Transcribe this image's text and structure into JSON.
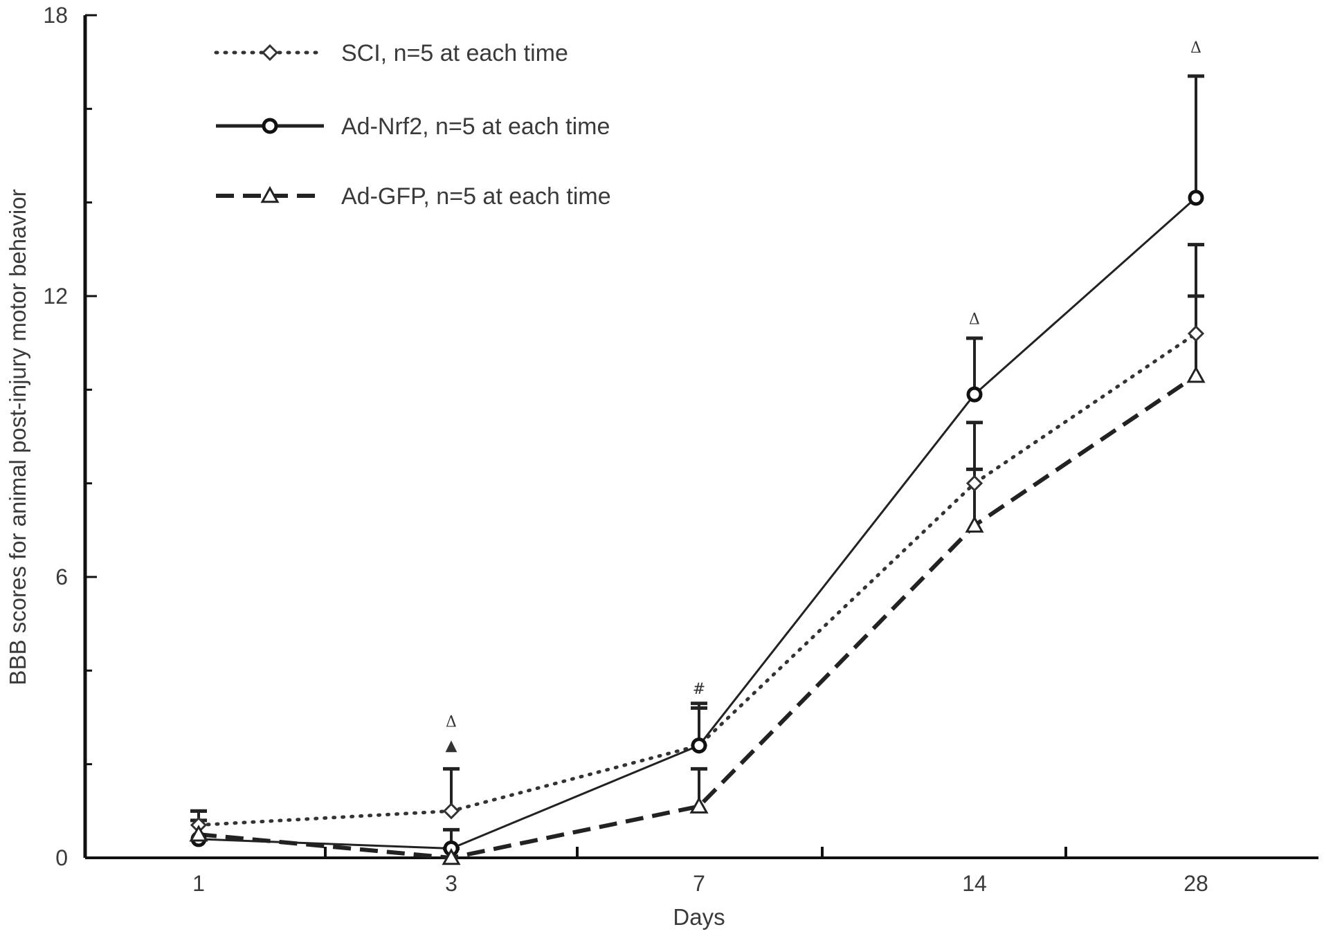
{
  "chart_data": {
    "type": "line",
    "xlabel": "Days",
    "ylabel": "BBB scores for animal post-injury motor behavior",
    "categories": [
      "1",
      "3",
      "7",
      "14",
      "28"
    ],
    "ylim": [
      0,
      18
    ],
    "yticks": [
      "0",
      "6",
      "12",
      "18"
    ],
    "legend_position": "top-left",
    "grid": false,
    "series": [
      {
        "name": "SCI, n=5 at each time",
        "marker": "diamond",
        "line": "dotted",
        "color": "#333333",
        "values": [
          0.7,
          1.0,
          2.4,
          8.0,
          11.2
        ],
        "error": [
          0.3,
          0.9,
          0.9,
          1.3,
          1.9
        ]
      },
      {
        "name": "Ad-Nrf2, n=5 at each time",
        "marker": "circle",
        "line": "solid",
        "color": "#222222",
        "values": [
          0.4,
          0.2,
          2.4,
          9.9,
          14.1
        ],
        "error": [
          0.6,
          0.4,
          0.8,
          1.2,
          2.6
        ]
      },
      {
        "name": "Ad-GFP, n=5 at each time",
        "marker": "triangle",
        "line": "dashed",
        "color": "#222222",
        "values": [
          0.5,
          0.0,
          1.1,
          7.1,
          10.3
        ],
        "error": [
          0.3,
          0.2,
          0.8,
          1.2,
          1.7
        ]
      }
    ],
    "annotations": [
      {
        "category": "3",
        "text": "Δ",
        "value": 2.8
      },
      {
        "category": "3",
        "text": "▲",
        "value": 2.3
      },
      {
        "category": "7",
        "text": "#",
        "value": 3.5
      },
      {
        "category": "14",
        "text": "Δ",
        "value": 11.4
      },
      {
        "category": "28",
        "text": "Δ",
        "value": 17.2
      }
    ]
  }
}
